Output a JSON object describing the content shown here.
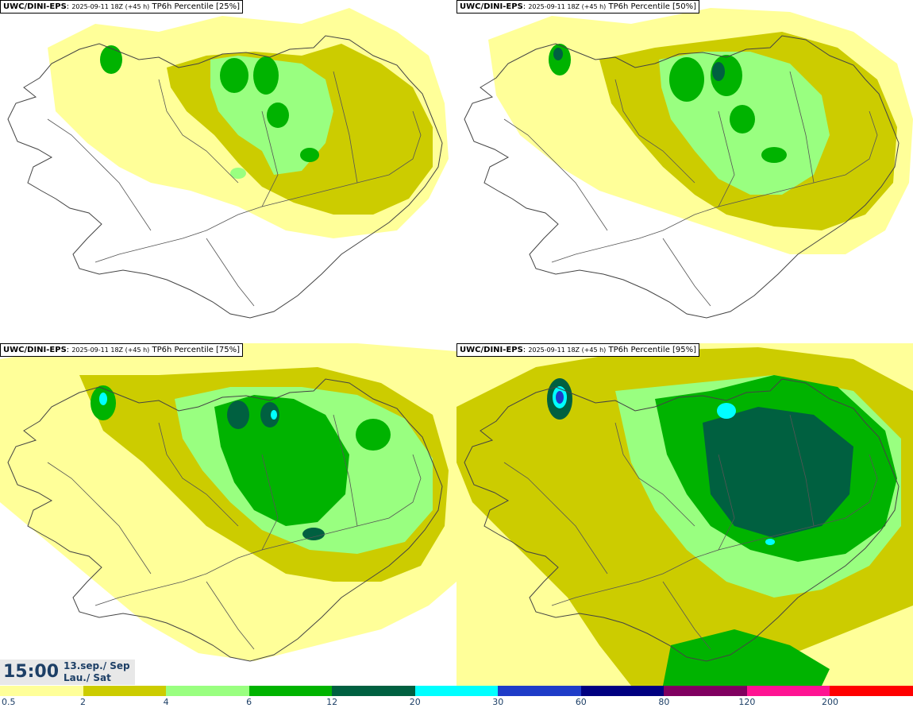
{
  "panels": [
    {
      "model": "UWC/DINI-EPS",
      "run": "2025-09-11 18Z (+45 h)",
      "field": "TP6h Percentile [25%]"
    },
    {
      "model": "UWC/DINI-EPS",
      "run": "2025-09-11 18Z (+45 h)",
      "field": "TP6h Percentile [50%]"
    },
    {
      "model": "UWC/DINI-EPS",
      "run": "2025-09-11 18Z (+45 h)",
      "field": "TP6h Percentile [75%]"
    },
    {
      "model": "UWC/DINI-EPS",
      "run": "2025-09-11 18Z (+45 h)",
      "field": "TP6h Percentile [95%]"
    }
  ],
  "valid": {
    "time": "15:00",
    "date_line1": "13.sep./ Sep",
    "date_line2": "Lau./ Sat"
  },
  "colorbar": {
    "labels": [
      "0.5",
      "2",
      "4",
      "6",
      "12",
      "20",
      "30",
      "60",
      "80",
      "120",
      "200"
    ],
    "colors": [
      "#ffff99",
      "#cccc00",
      "#99ff80",
      "#00b300",
      "#006040",
      "#00ffff",
      "#1e3cc8",
      "#000080",
      "#800060",
      "#ff1493",
      "#ff0000"
    ]
  },
  "legend_colors": {
    "c1": "#ffff99",
    "c2": "#cccc00",
    "c3": "#99ff80",
    "c4": "#00b300",
    "c5": "#006040",
    "c6": "#00ffff",
    "c7": "#1e3cc8"
  }
}
